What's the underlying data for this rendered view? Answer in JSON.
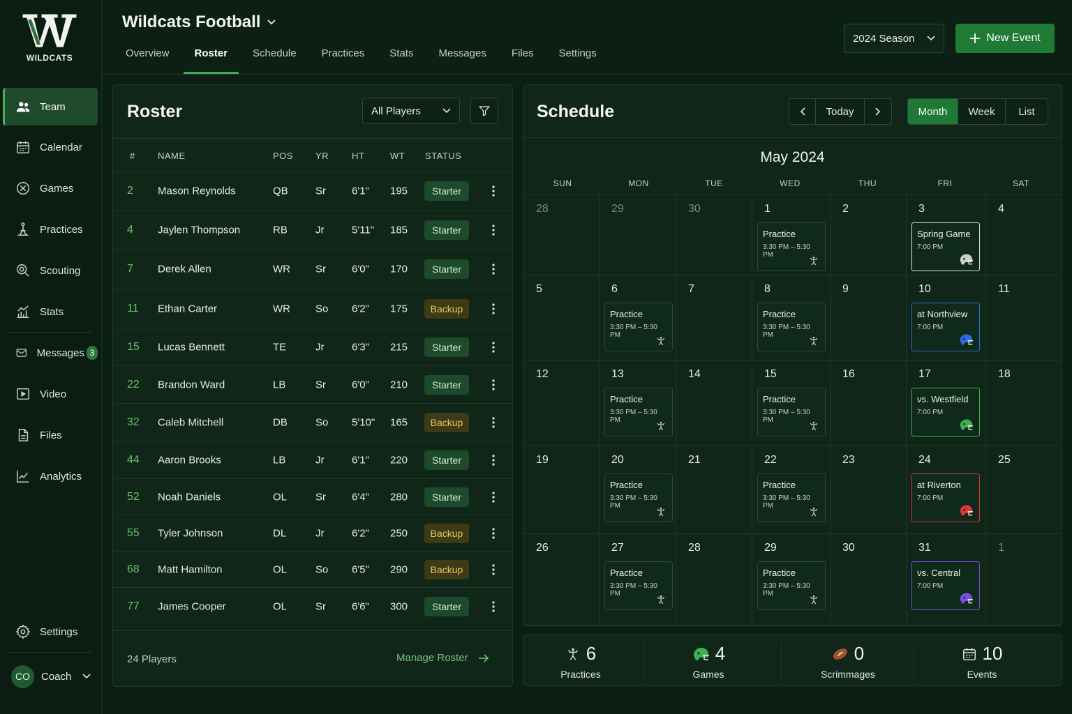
{
  "app": {
    "logo_letter": "W",
    "logo_text": "WILDCATS"
  },
  "sidebar": {
    "items": [
      {
        "label": "Team",
        "icon": "team-icon"
      },
      {
        "label": "Calendar",
        "icon": "calendar-icon"
      },
      {
        "label": "Games",
        "icon": "games-icon"
      },
      {
        "label": "Practices",
        "icon": "practices-icon"
      },
      {
        "label": "Scouting",
        "icon": "scouting-icon"
      },
      {
        "label": "Stats",
        "icon": "stats-icon"
      },
      {
        "label": "Messages",
        "icon": "messages-icon",
        "badge": "3"
      },
      {
        "label": "Video",
        "icon": "video-icon"
      },
      {
        "label": "Files",
        "icon": "files-icon"
      },
      {
        "label": "Analytics",
        "icon": "analytics-icon"
      }
    ],
    "settings_label": "Settings",
    "user": {
      "initials": "CO",
      "name": "Coach"
    }
  },
  "header": {
    "team_name": "Wildcats Football",
    "tabs": [
      "Overview",
      "Roster",
      "Schedule",
      "Practices",
      "Stats",
      "Messages",
      "Files",
      "Settings"
    ],
    "active_tab": "Roster",
    "season": "2024 Season",
    "new_event": "New Event"
  },
  "roster": {
    "title": "Roster",
    "filter": "All Players",
    "columns": [
      "#",
      "NAME",
      "POS",
      "YR",
      "HT",
      "WT",
      "STATUS"
    ],
    "players": [
      {
        "num": "2",
        "name": "Mason Reynolds",
        "pos": "QB",
        "yr": "Sr",
        "ht": "6'1\"",
        "wt": "195",
        "status": "Starter"
      },
      {
        "num": "4",
        "name": "Jaylen Thompson",
        "pos": "RB",
        "yr": "Jr",
        "ht": "5'11\"",
        "wt": "185",
        "status": "Starter"
      },
      {
        "num": "7",
        "name": "Derek Allen",
        "pos": "WR",
        "yr": "Sr",
        "ht": "6'0\"",
        "wt": "170",
        "status": "Starter"
      },
      {
        "num": "11",
        "name": "Ethan Carter",
        "pos": "WR",
        "yr": "So",
        "ht": "6'2\"",
        "wt": "175",
        "status": "Backup"
      },
      {
        "num": "15",
        "name": "Lucas Bennett",
        "pos": "TE",
        "yr": "Jr",
        "ht": "6'3\"",
        "wt": "215",
        "status": "Starter"
      },
      {
        "num": "22",
        "name": "Brandon Ward",
        "pos": "LB",
        "yr": "Sr",
        "ht": "6'0\"",
        "wt": "210",
        "status": "Starter"
      },
      {
        "num": "32",
        "name": "Caleb Mitchell",
        "pos": "DB",
        "yr": "So",
        "ht": "5'10\"",
        "wt": "165",
        "status": "Backup"
      },
      {
        "num": "44",
        "name": "Aaron Brooks",
        "pos": "LB",
        "yr": "Jr",
        "ht": "6'1\"",
        "wt": "220",
        "status": "Starter"
      },
      {
        "num": "52",
        "name": "Noah Daniels",
        "pos": "OL",
        "yr": "Sr",
        "ht": "6'4\"",
        "wt": "280",
        "status": "Starter"
      },
      {
        "num": "55",
        "name": "Tyler Johnson",
        "pos": "DL",
        "yr": "Jr",
        "ht": "6'2\"",
        "wt": "250",
        "status": "Backup"
      },
      {
        "num": "68",
        "name": "Matt Hamilton",
        "pos": "OL",
        "yr": "So",
        "ht": "6'5\"",
        "wt": "290",
        "status": "Backup"
      },
      {
        "num": "77",
        "name": "James Cooper",
        "pos": "OL",
        "yr": "Sr",
        "ht": "6'6\"",
        "wt": "300",
        "status": "Starter"
      }
    ],
    "footer_count": "24 Players",
    "manage": "Manage Roster"
  },
  "schedule": {
    "title": "Schedule",
    "today": "Today",
    "views": [
      "Month",
      "Week",
      "List"
    ],
    "active_view": "Month",
    "month": "May 2024",
    "weekdays": [
      "SUN",
      "MON",
      "TUE",
      "WED",
      "THU",
      "FRI",
      "SAT"
    ],
    "weeks": [
      [
        {
          "d": "28",
          "dim": true
        },
        {
          "d": "29",
          "dim": true
        },
        {
          "d": "30",
          "dim": true
        },
        {
          "d": "1",
          "ev": {
            "t": "Practice",
            "s": "3:30 PM – 5:30 PM",
            "kind": "practice"
          }
        },
        {
          "d": "2"
        },
        {
          "d": "3",
          "ev": {
            "t": "Spring Game",
            "s": "7:00 PM",
            "kind": "g-white",
            "color": "#c9d0cc"
          }
        },
        {
          "d": "4"
        }
      ],
      [
        {
          "d": "5"
        },
        {
          "d": "6",
          "ev": {
            "t": "Practice",
            "s": "3:30 PM – 5:30 PM",
            "kind": "practice"
          }
        },
        {
          "d": "7"
        },
        {
          "d": "8",
          "ev": {
            "t": "Practice",
            "s": "3:30 PM – 5:30 PM",
            "kind": "practice"
          }
        },
        {
          "d": "9"
        },
        {
          "d": "10",
          "ev": {
            "t": "at Northview",
            "s": "7:00 PM",
            "kind": "g-blue",
            "color": "#2f6ae0"
          }
        },
        {
          "d": "11"
        }
      ],
      [
        {
          "d": "12"
        },
        {
          "d": "13",
          "ev": {
            "t": "Practice",
            "s": "3:30 PM – 5:30 PM",
            "kind": "practice"
          }
        },
        {
          "d": "14"
        },
        {
          "d": "15",
          "ev": {
            "t": "Practice",
            "s": "3:30 PM – 5:30 PM",
            "kind": "practice"
          }
        },
        {
          "d": "16"
        },
        {
          "d": "17",
          "ev": {
            "t": "vs. Westfield",
            "s": "7:00 PM",
            "kind": "game",
            "color": "#3fae52"
          }
        },
        {
          "d": "18"
        }
      ],
      [
        {
          "d": "19"
        },
        {
          "d": "20",
          "ev": {
            "t": "Practice",
            "s": "3:30 PM – 5:30 PM",
            "kind": "practice"
          }
        },
        {
          "d": "21"
        },
        {
          "d": "22",
          "ev": {
            "t": "Practice",
            "s": "3:30 PM – 5:30 PM",
            "kind": "practice"
          }
        },
        {
          "d": "23"
        },
        {
          "d": "24",
          "ev": {
            "t": "at Riverton",
            "s": "7:00 PM",
            "kind": "g-red",
            "color": "#e0343b"
          }
        },
        {
          "d": "25"
        }
      ],
      [
        {
          "d": "26"
        },
        {
          "d": "27",
          "ev": {
            "t": "Practice",
            "s": "3:30 PM – 5:30 PM",
            "kind": "practice"
          }
        },
        {
          "d": "28"
        },
        {
          "d": "29",
          "ev": {
            "t": "Practice",
            "s": "3:30 PM – 5:30 PM",
            "kind": "practice"
          }
        },
        {
          "d": "30"
        },
        {
          "d": "31",
          "ev": {
            "t": "vs. Central",
            "s": "7:00 PM",
            "kind": "g-purple",
            "color": "#7c4de0"
          }
        },
        {
          "d": "1",
          "dim": true
        }
      ]
    ]
  },
  "summary": [
    {
      "value": "6",
      "label": "Practices",
      "icon": "practice-whistle-icon"
    },
    {
      "value": "4",
      "label": "Games",
      "icon": "helmet-icon"
    },
    {
      "value": "0",
      "label": "Scrimmages",
      "icon": "football-icon"
    },
    {
      "value": "10",
      "label": "Events",
      "icon": "calendar-icon"
    }
  ],
  "colors": {
    "accent": "#1f7a35",
    "background": "#0c1f14",
    "panel": "#0f2618",
    "starter": "#1d4a2b",
    "backup": "#3d3a16"
  }
}
